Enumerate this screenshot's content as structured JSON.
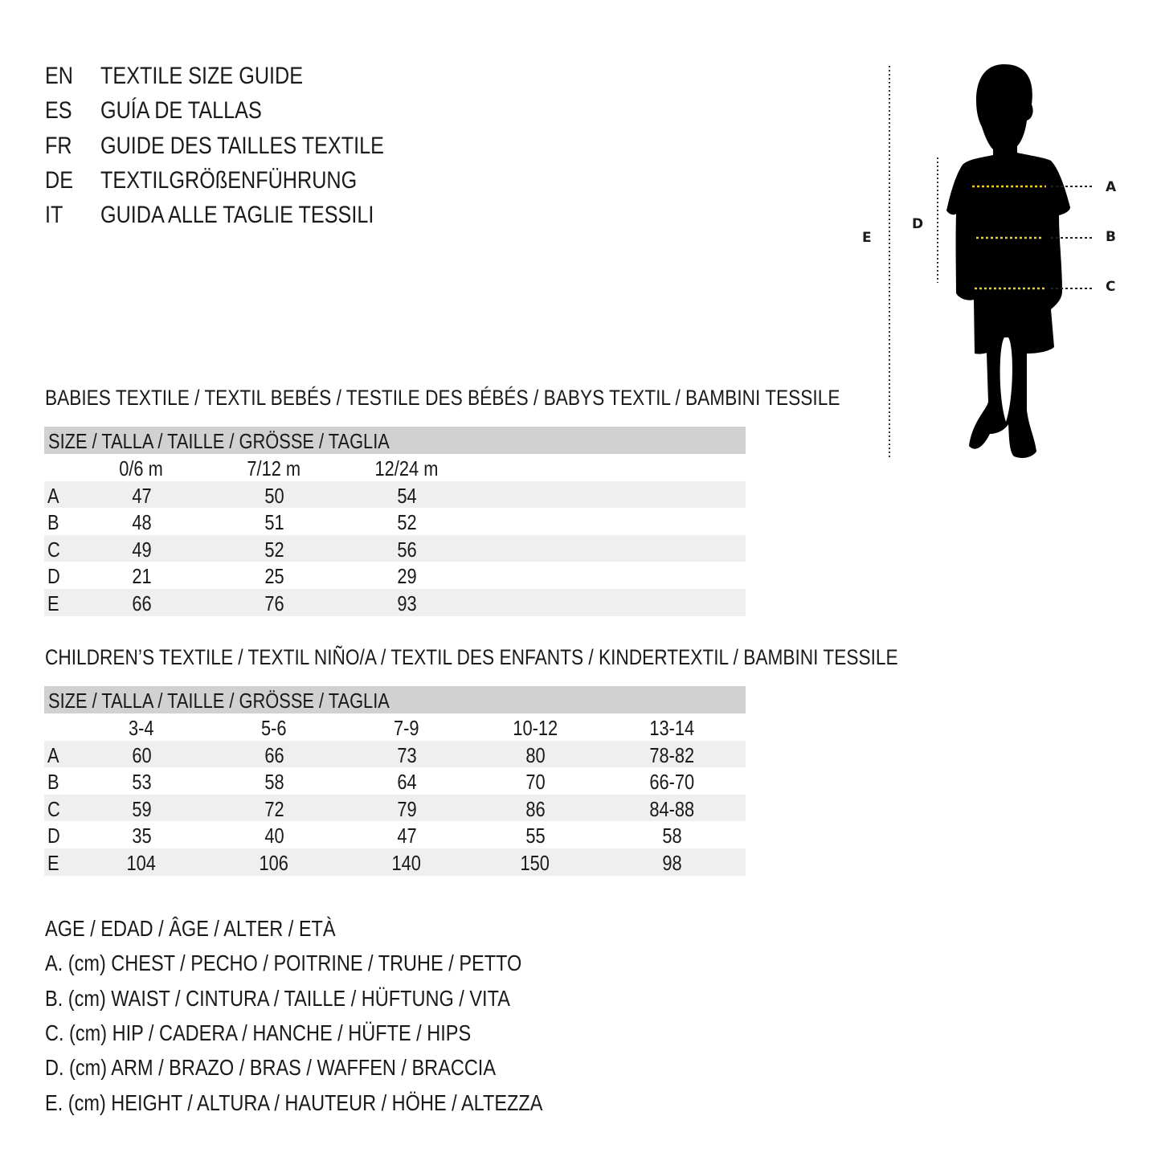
{
  "header": {
    "languages": [
      {
        "code": "EN",
        "title": "TEXTILE SIZE GUIDE"
      },
      {
        "code": "ES",
        "title": "GUÍA DE TALLAS"
      },
      {
        "code": "FR",
        "title": "GUIDE DES TAILLES TEXTILE"
      },
      {
        "code": "DE",
        "title": "TEXTILGRÖßENFÜHRUNG"
      },
      {
        "code": "IT",
        "title": "GUIDA ALLE TAGLIE TESSILI"
      }
    ]
  },
  "figure": {
    "labels": {
      "A": "A",
      "B": "B",
      "C": "C",
      "D": "D",
      "E": "E"
    },
    "measure_line_color": "#e8d21f"
  },
  "babies": {
    "title": "BABIES TEXTILE / TEXTIL BEBÉS / TESTILE DES BÉBÉS / BABYS TEXTIL / BAMBINI TESSILE",
    "size_header": "SIZE / TALLA / TAILLE / GRÖSSE / TAGLIA",
    "columns": [
      "0/6 m",
      "7/12 m",
      "12/24 m"
    ],
    "rows": [
      {
        "label": "A",
        "values": [
          "47",
          "50",
          "54"
        ]
      },
      {
        "label": "B",
        "values": [
          "48",
          "51",
          "52"
        ]
      },
      {
        "label": "C",
        "values": [
          "49",
          "52",
          "56"
        ]
      },
      {
        "label": "D",
        "values": [
          "21",
          "25",
          "29"
        ]
      },
      {
        "label": "E",
        "values": [
          "66",
          "76",
          "93"
        ]
      }
    ]
  },
  "children": {
    "title": "CHILDREN’S TEXTILE / TEXTIL NIÑO/A / TEXTIL DES ENFANTS / KINDERTEXTIL / BAMBINI TESSILE",
    "size_header": "SIZE / TALLA / TAILLE / GRÖSSE / TAGLIA",
    "columns": [
      "3-4",
      "5-6",
      "7-9",
      "10-12",
      "13-14"
    ],
    "rows": [
      {
        "label": "A",
        "values": [
          "60",
          "66",
          "73",
          "80",
          "78-82"
        ]
      },
      {
        "label": "B",
        "values": [
          "53",
          "58",
          "64",
          "70",
          "66-70"
        ]
      },
      {
        "label": "C",
        "values": [
          "59",
          "72",
          "79",
          "86",
          "84-88"
        ]
      },
      {
        "label": "D",
        "values": [
          "35",
          "40",
          "47",
          "55",
          "58"
        ]
      },
      {
        "label": "E",
        "values": [
          "104",
          "106",
          "140",
          "150",
          "98"
        ]
      }
    ]
  },
  "legend": {
    "age": "AGE / EDAD / ÂGE / ALTER / ETÀ",
    "items": [
      "A. (cm) CHEST / PECHO / POITRINE / TRUHE / PETTO",
      "B. (cm) WAIST / CINTURA / TAILLE / HÜFTUNG / VITA",
      "C. (cm) HIP / CADERA / HANCHE / HÜFTE / HIPS",
      "D. (cm) ARM / BRAZO / BRAS / WAFFEN / BRACCIA",
      "E. (cm) HEIGHT / ALTURA / HAUTEUR / HÖHE / ALTEZZA"
    ]
  }
}
